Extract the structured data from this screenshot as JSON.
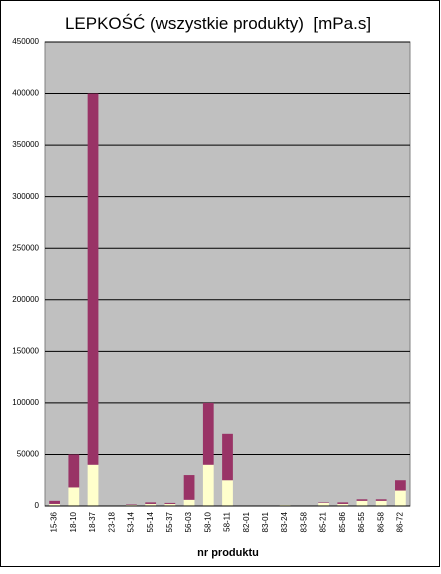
{
  "chart_data": {
    "type": "stacked_bar",
    "title": "LEPKOŚĆ (wszystkie produkty)  [mPa.s]",
    "x_label": "nr produktu",
    "categories": [
      "15-36",
      "18-10",
      "18-37",
      "23-18",
      "53-14",
      "55-14",
      "55-37",
      "56-03",
      "58-10",
      "58-11",
      "82-01",
      "83-01",
      "83-24",
      "83-58",
      "85-21",
      "85-86",
      "86-55",
      "86-58",
      "86-72"
    ],
    "series": [
      {
        "color": "#ffffcc",
        "values": [
          2000,
          18000,
          40000,
          500,
          1000,
          2000,
          2000,
          6000,
          40000,
          25000,
          500,
          500,
          1000,
          500,
          3000,
          2000,
          5000,
          5000,
          15000
        ]
      },
      {
        "color": "#993366",
        "values": [
          3000,
          32000,
          360000,
          0,
          500,
          1500,
          1000,
          24000,
          60000,
          45000,
          0,
          0,
          0,
          0,
          500,
          1500,
          1500,
          1500,
          10000
        ]
      }
    ],
    "ylim": [
      0,
      450000
    ],
    "yticks": [
      0,
      50000,
      100000,
      150000,
      200000,
      250000,
      300000,
      350000,
      400000,
      450000
    ],
    "grid": true
  }
}
